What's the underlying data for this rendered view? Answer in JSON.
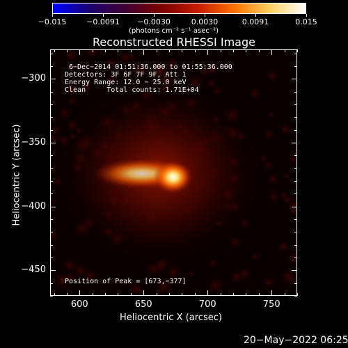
{
  "colorbar": {
    "tick_labels": [
      "−0.015",
      "−0.0091",
      "−0.0030",
      "0.0030",
      "0.0091",
      "0.015"
    ],
    "units": "(photons cm⁻² s⁻¹ asec⁻²)",
    "min": -0.015,
    "max": 0.015,
    "colors": [
      "#0000ff",
      "#1a0070",
      "#400030",
      "#7a0000",
      "#c41a00",
      "#ff7000",
      "#ffd060",
      "#ffffff"
    ]
  },
  "title": "Reconstructed RHESSI Image",
  "info": {
    "time_range": "6−Dec−2014 01:51:36.000 to 01:55:36.000",
    "detectors": "Detectors: 3F 6F 7F 9F, Att 1",
    "energy_range": "Energy Range: 12.0 − 25.0 keV",
    "clean_counts": "Clean     Total counts: 1.71E+04",
    "peak_position": "Position of Peak = [673,−377]"
  },
  "axes": {
    "xlabel": "Heliocentric X (arcsec)",
    "ylabel": "Heliocentric Y (arcsec)",
    "x_ticks": [
      "600",
      "650",
      "700",
      "750"
    ],
    "y_ticks": [
      "−300",
      "−350",
      "−400",
      "−450"
    ],
    "xlim": [
      577,
      770
    ],
    "ylim": [
      -470,
      -277
    ]
  },
  "image": {
    "peak_x": 673,
    "peak_y": -377
  },
  "footer": {
    "timestamp": "20−May−2022 06:25"
  }
}
